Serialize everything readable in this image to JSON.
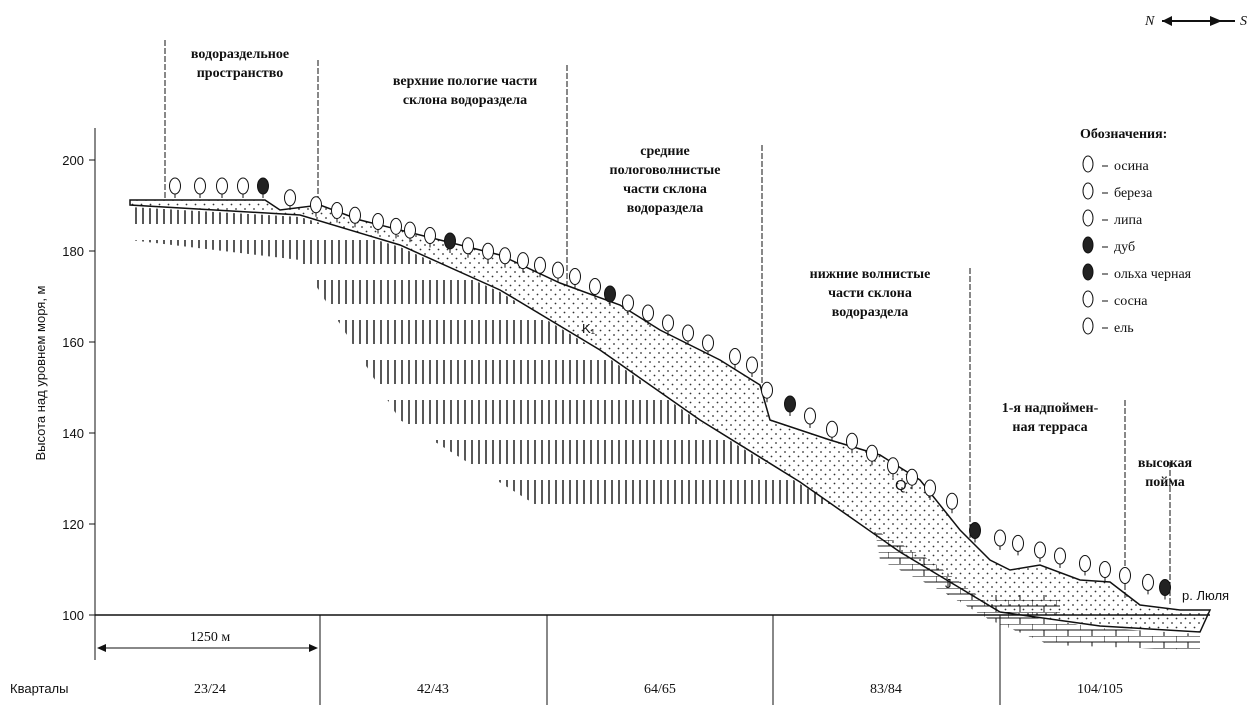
{
  "direction": {
    "from": "S",
    "to": "N"
  },
  "y_axis": {
    "label": "Высота над уровнем моря, м",
    "ticks": [
      100,
      120,
      140,
      160,
      180,
      200
    ]
  },
  "zones": [
    {
      "lines": [
        "водораздельное",
        "пространство"
      ]
    },
    {
      "lines": [
        "верхние пологие части",
        "склона водораздела"
      ]
    },
    {
      "lines": [
        "средние",
        "пологоволнистые",
        "части склона",
        "водораздела"
      ]
    },
    {
      "lines": [
        "нижние волнистые",
        "части склона",
        "водораздела"
      ]
    },
    {
      "lines": [
        "1-я надпоймен-",
        "ная терраса"
      ]
    },
    {
      "lines": [
        "высокая",
        "пойма"
      ]
    }
  ],
  "legend": {
    "title": "Обозначения:",
    "items": [
      "осина",
      "береза",
      "липа",
      "дуб",
      "ольха черная",
      "сосна",
      "ель"
    ]
  },
  "geology": {
    "k": "K₁",
    "q": "Q",
    "j": "J",
    "river": "р. Люля"
  },
  "scale": "1250 м",
  "quarters": {
    "label": "Кварталы",
    "items": [
      "23/24",
      "42/43",
      "64/65",
      "83/84",
      "104/105"
    ]
  }
}
